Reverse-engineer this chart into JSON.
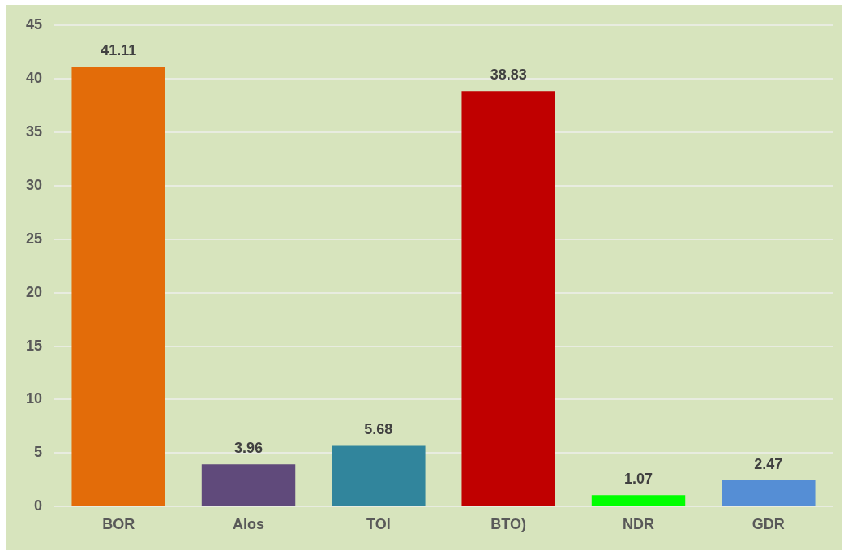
{
  "chart_data": {
    "type": "bar",
    "categories": [
      "BOR",
      "Alos",
      "TOI",
      "BTO)",
      "NDR",
      "GDR"
    ],
    "values": [
      41.11,
      3.96,
      5.68,
      38.83,
      1.07,
      2.47
    ],
    "colors": [
      "#e36c09",
      "#604a7b",
      "#31859c",
      "#c00000",
      "#00ff00",
      "#558ed5"
    ],
    "ylim": [
      0,
      45
    ],
    "yticks": [
      0,
      5,
      10,
      15,
      20,
      25,
      30,
      35,
      40,
      45
    ],
    "grid": "y",
    "data_labels": true,
    "legend": false
  }
}
